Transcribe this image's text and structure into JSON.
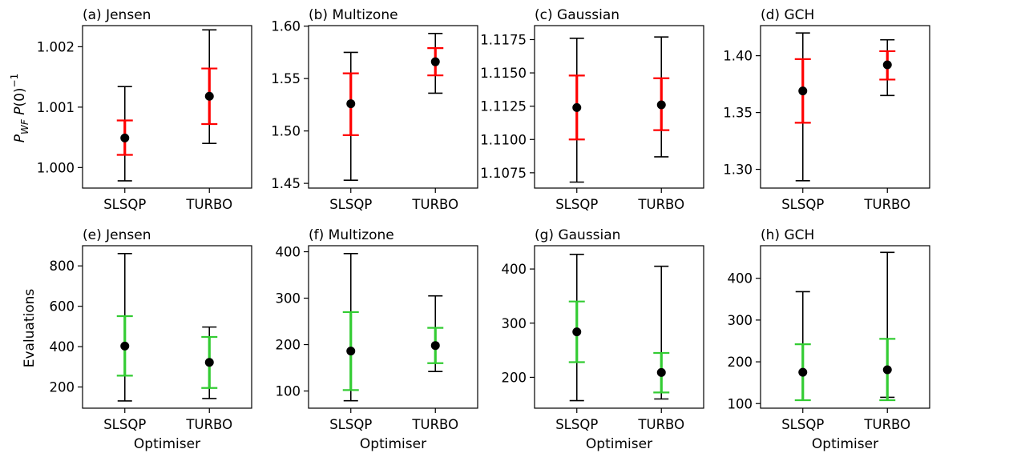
{
  "figure": {
    "row_labels": [
      "P_WF P(0)^-1",
      "Evaluations"
    ],
    "x_axis_label": "Optimiser",
    "colors": {
      "whisker": "#000000",
      "iqr_top": "#ff0000",
      "iqr_bottom": "#33cc33",
      "mean": "#000000"
    }
  },
  "chart_data": [
    {
      "type": "errorbar",
      "title": "(a) Jensen",
      "categories": [
        "SLSQP",
        "TURBO"
      ],
      "ylim": [
        0.99966,
        1.00235
      ],
      "yticks": [
        1.0,
        1.001,
        1.002
      ],
      "ytick_labels": [
        "1.000",
        "1.001",
        "1.002"
      ],
      "series": [
        {
          "category": "SLSQP",
          "mean": 1.00049,
          "iqr": [
            1.00021,
            1.00078
          ],
          "range": [
            0.99978,
            1.00134
          ]
        },
        {
          "category": "TURBO",
          "mean": 1.00118,
          "iqr": [
            1.00072,
            1.00164
          ],
          "range": [
            1.0004,
            1.00228
          ]
        }
      ]
    },
    {
      "type": "errorbar",
      "title": "(b) Multizone",
      "categories": [
        "SLSQP",
        "TURBO"
      ],
      "ylim": [
        1.4455,
        1.6005
      ],
      "yticks": [
        1.45,
        1.5,
        1.55,
        1.6
      ],
      "ytick_labels": [
        "1.45",
        "1.50",
        "1.55",
        "1.60"
      ],
      "series": [
        {
          "category": "SLSQP",
          "mean": 1.526,
          "iqr": [
            1.496,
            1.555
          ],
          "range": [
            1.453,
            1.575
          ]
        },
        {
          "category": "TURBO",
          "mean": 1.566,
          "iqr": [
            1.553,
            1.579
          ],
          "range": [
            1.536,
            1.593
          ]
        }
      ]
    },
    {
      "type": "errorbar",
      "title": "(c) Gaussian",
      "categories": [
        "SLSQP",
        "TURBO"
      ],
      "ylim": [
        1.10635,
        1.11855
      ],
      "yticks": [
        1.1075,
        1.11,
        1.1125,
        1.115,
        1.1175
      ],
      "ytick_labels": [
        "1.1075",
        "1.1100",
        "1.1125",
        "1.1150",
        "1.1175"
      ],
      "series": [
        {
          "category": "SLSQP",
          "mean": 1.1124,
          "iqr": [
            1.11,
            1.1148
          ],
          "range": [
            1.1068,
            1.1176
          ]
        },
        {
          "category": "TURBO",
          "mean": 1.1126,
          "iqr": [
            1.1107,
            1.1146
          ],
          "range": [
            1.1087,
            1.1177
          ]
        }
      ]
    },
    {
      "type": "errorbar",
      "title": "(d) GCH",
      "categories": [
        "SLSQP",
        "TURBO"
      ],
      "ylim": [
        1.2835,
        1.4265
      ],
      "yticks": [
        1.3,
        1.35,
        1.4
      ],
      "ytick_labels": [
        "1.30",
        "1.35",
        "1.40"
      ],
      "series": [
        {
          "category": "SLSQP",
          "mean": 1.369,
          "iqr": [
            1.341,
            1.397
          ],
          "range": [
            1.29,
            1.42
          ]
        },
        {
          "category": "TURBO",
          "mean": 1.392,
          "iqr": [
            1.379,
            1.404
          ],
          "range": [
            1.365,
            1.414
          ]
        }
      ]
    },
    {
      "type": "errorbar",
      "title": "(e) Jensen",
      "categories": [
        "SLSQP",
        "TURBO"
      ],
      "ylim": [
        95,
        900
      ],
      "yticks": [
        200,
        400,
        600,
        800
      ],
      "ytick_labels": [
        "200",
        "400",
        "600",
        "800"
      ],
      "series": [
        {
          "category": "SLSQP",
          "mean": 403,
          "iqr": [
            256,
            551
          ],
          "range": [
            131,
            861
          ]
        },
        {
          "category": "TURBO",
          "mean": 322,
          "iqr": [
            195,
            448
          ],
          "range": [
            143,
            497
          ]
        }
      ]
    },
    {
      "type": "errorbar",
      "title": "(f) Multizone",
      "categories": [
        "SLSQP",
        "TURBO"
      ],
      "ylim": [
        63,
        413
      ],
      "yticks": [
        100,
        200,
        300,
        400
      ],
      "ytick_labels": [
        "100",
        "200",
        "300",
        "400"
      ],
      "series": [
        {
          "category": "SLSQP",
          "mean": 186,
          "iqr": [
            102,
            270
          ],
          "range": [
            79,
            396
          ]
        },
        {
          "category": "TURBO",
          "mean": 198,
          "iqr": [
            160,
            236
          ],
          "range": [
            142,
            305
          ]
        }
      ]
    },
    {
      "type": "errorbar",
      "title": "(g) Gaussian",
      "categories": [
        "SLSQP",
        "TURBO"
      ],
      "ylim": [
        143,
        443
      ],
      "yticks": [
        200,
        300,
        400
      ],
      "ytick_labels": [
        "200",
        "300",
        "400"
      ],
      "series": [
        {
          "category": "SLSQP",
          "mean": 284,
          "iqr": [
            228,
            340
          ],
          "range": [
            157,
            427
          ]
        },
        {
          "category": "TURBO",
          "mean": 209,
          "iqr": [
            172,
            245
          ],
          "range": [
            160,
            405
          ]
        }
      ]
    },
    {
      "type": "errorbar",
      "title": "(h) GCH",
      "categories": [
        "SLSQP",
        "TURBO"
      ],
      "ylim": [
        89,
        478
      ],
      "yticks": [
        100,
        200,
        300,
        400
      ],
      "ytick_labels": [
        "100",
        "200",
        "300",
        "400"
      ],
      "series": [
        {
          "category": "SLSQP",
          "mean": 175,
          "iqr": [
            108,
            242
          ],
          "range": [
            108,
            368
          ]
        },
        {
          "category": "TURBO",
          "mean": 181,
          "iqr": [
            108,
            255
          ],
          "range": [
            115,
            462
          ]
        }
      ]
    }
  ]
}
